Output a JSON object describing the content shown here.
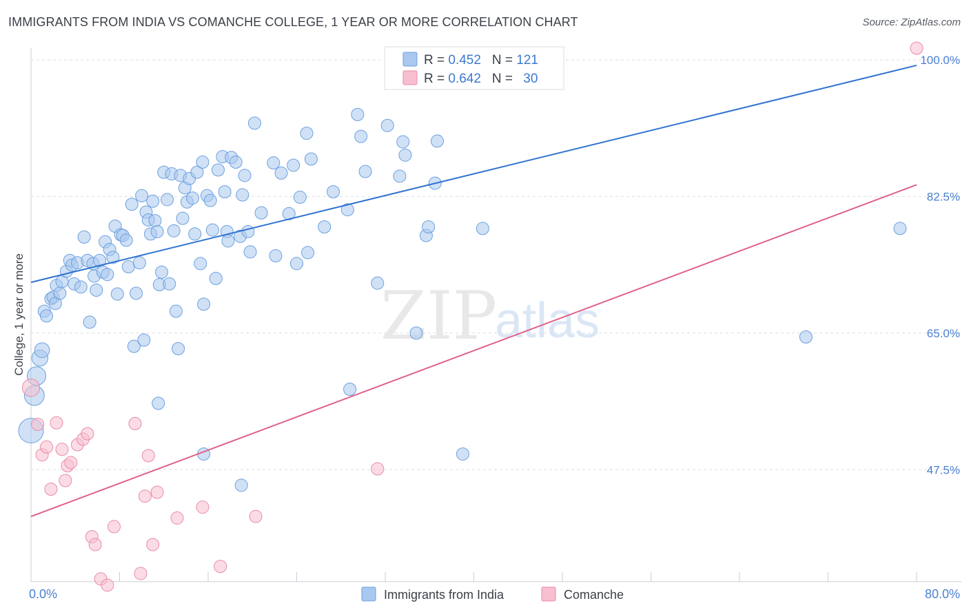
{
  "header": {
    "title": "IMMIGRANTS FROM INDIA VS COMANCHE COLLEGE, 1 YEAR OR MORE CORRELATION CHART",
    "source": "Source: ZipAtlas.com"
  },
  "watermark": {
    "zip": "ZIP",
    "atlas": "atlas"
  },
  "colors": {
    "blue_fill": "#a9c8ef",
    "blue_stroke": "#6c9fe0",
    "blue_line": "#2f72d0",
    "pink_fill": "#f7bfd0",
    "pink_stroke": "#e98aa8",
    "pink_line": "#e0608a",
    "tick_text": "#4a7fd0",
    "grid": "#d9dde3"
  },
  "legend": {
    "rows": [
      {
        "r_label": "R = ",
        "r_value": "0.452",
        "n_label": "N = ",
        "n_value": "121"
      },
      {
        "r_label": "R = ",
        "r_value": "0.642",
        "n_label": "N = ",
        "n_value": "30"
      }
    ]
  },
  "bottom_legend": [
    {
      "label": "Immigrants from India"
    },
    {
      "label": "Comanche"
    }
  ],
  "chart_data": {
    "type": "scatter",
    "title": "IMMIGRANTS FROM INDIA VS COMANCHE COLLEGE, 1 YEAR OR MORE CORRELATION CHART",
    "xlabel": "",
    "ylabel": "College, 1 year or more",
    "xlim": [
      0,
      80
    ],
    "ylim": [
      33.5,
      101.5
    ],
    "x_tick_labels": [
      "0.0%",
      "80.0%"
    ],
    "y_ticks": [
      47.5,
      65.0,
      82.5,
      100.0
    ],
    "y_tick_labels": [
      "47.5%",
      "65.0%",
      "82.5%",
      "100.0%"
    ],
    "grid": true,
    "series": [
      {
        "name": "Immigrants from India",
        "color": "#a9c8ef",
        "trend": {
          "x": [
            0,
            80
          ],
          "y": [
            71.5,
            99.3
          ]
        },
        "points": [
          [
            0.0,
            52.5,
            2.0
          ],
          [
            0.3,
            57.0,
            1.6
          ],
          [
            0.5,
            59.5,
            1.5
          ],
          [
            0.8,
            61.8,
            1.3
          ],
          [
            1.0,
            62.8,
            1.2
          ],
          [
            1.2,
            67.8,
            1.0
          ],
          [
            1.4,
            67.2,
            1.0
          ],
          [
            1.8,
            69.4,
            1.0
          ],
          [
            2.0,
            69.6,
            1.0
          ],
          [
            2.2,
            68.8,
            1.0
          ],
          [
            2.3,
            71.1,
            1.0
          ],
          [
            2.6,
            70.1,
            1.0
          ],
          [
            2.8,
            71.6,
            1.0
          ],
          [
            3.2,
            72.9,
            1.0
          ],
          [
            3.5,
            74.3,
            1.0
          ],
          [
            3.7,
            73.7,
            1.0
          ],
          [
            3.9,
            71.3,
            1.0
          ],
          [
            4.2,
            74.0,
            1.0
          ],
          [
            4.5,
            70.9,
            1.0
          ],
          [
            4.8,
            77.3,
            1.0
          ],
          [
            5.1,
            74.3,
            1.0
          ],
          [
            5.3,
            66.4,
            1.0
          ],
          [
            5.6,
            73.9,
            1.0
          ],
          [
            5.7,
            72.3,
            1.0
          ],
          [
            5.9,
            70.5,
            1.0
          ],
          [
            6.2,
            74.3,
            1.0
          ],
          [
            6.5,
            72.8,
            1.0
          ],
          [
            6.7,
            76.7,
            1.0
          ],
          [
            6.9,
            72.5,
            1.0
          ],
          [
            7.1,
            75.7,
            1.0
          ],
          [
            7.4,
            74.7,
            1.0
          ],
          [
            7.6,
            78.7,
            1.0
          ],
          [
            7.8,
            70.0,
            1.0
          ],
          [
            8.1,
            77.6,
            1.0
          ],
          [
            8.3,
            77.5,
            1.0
          ],
          [
            8.6,
            76.9,
            1.0
          ],
          [
            8.8,
            73.5,
            1.0
          ],
          [
            9.1,
            81.5,
            1.0
          ],
          [
            9.3,
            63.3,
            1.0
          ],
          [
            9.5,
            70.1,
            1.0
          ],
          [
            9.8,
            74.0,
            1.0
          ],
          [
            10.0,
            82.6,
            1.0
          ],
          [
            10.2,
            64.1,
            1.0
          ],
          [
            10.4,
            80.5,
            1.0
          ],
          [
            10.6,
            79.5,
            1.0
          ],
          [
            10.8,
            77.7,
            1.0
          ],
          [
            11.0,
            81.9,
            1.0
          ],
          [
            11.2,
            79.4,
            1.0
          ],
          [
            11.4,
            78.0,
            1.0
          ],
          [
            11.6,
            71.2,
            1.0
          ],
          [
            11.8,
            72.8,
            1.0
          ],
          [
            12.0,
            85.6,
            1.0
          ],
          [
            12.3,
            82.1,
            1.0
          ],
          [
            12.5,
            71.3,
            1.0
          ],
          [
            12.7,
            85.4,
            1.0
          ],
          [
            12.9,
            78.1,
            1.0
          ],
          [
            13.1,
            67.8,
            1.0
          ],
          [
            13.3,
            63.0,
            1.0
          ],
          [
            13.5,
            85.2,
            1.0
          ],
          [
            13.7,
            79.7,
            1.0
          ],
          [
            13.9,
            83.6,
            1.0
          ],
          [
            14.1,
            81.8,
            1.0
          ],
          [
            14.3,
            84.8,
            1.0
          ],
          [
            14.6,
            82.3,
            1.0
          ],
          [
            14.8,
            77.7,
            1.0
          ],
          [
            15.0,
            85.6,
            1.0
          ],
          [
            15.3,
            73.9,
            1.0
          ],
          [
            15.5,
            86.9,
            1.0
          ],
          [
            15.6,
            68.7,
            1.0
          ],
          [
            15.9,
            82.6,
            1.0
          ],
          [
            16.2,
            82.0,
            1.0
          ],
          [
            16.4,
            78.2,
            1.0
          ],
          [
            16.7,
            72.0,
            1.0
          ],
          [
            16.9,
            85.9,
            1.0
          ],
          [
            17.3,
            87.6,
            1.0
          ],
          [
            17.5,
            83.1,
            1.0
          ],
          [
            17.7,
            78.0,
            1.0
          ],
          [
            17.8,
            76.8,
            1.0
          ],
          [
            18.1,
            87.5,
            1.0
          ],
          [
            18.5,
            86.9,
            1.0
          ],
          [
            18.9,
            77.4,
            1.0
          ],
          [
            19.1,
            82.7,
            1.0
          ],
          [
            19.3,
            85.2,
            1.0
          ],
          [
            19.6,
            78.0,
            1.0
          ],
          [
            19.8,
            75.4,
            1.0
          ],
          [
            20.2,
            91.9,
            1.0
          ],
          [
            20.8,
            80.4,
            1.0
          ],
          [
            21.9,
            86.8,
            1.0
          ],
          [
            22.1,
            74.9,
            1.0
          ],
          [
            22.6,
            85.5,
            1.0
          ],
          [
            23.3,
            80.3,
            1.0
          ],
          [
            23.7,
            86.5,
            1.0
          ],
          [
            24.0,
            73.9,
            1.0
          ],
          [
            24.3,
            82.4,
            1.0
          ],
          [
            24.9,
            90.6,
            1.0
          ],
          [
            25.0,
            75.3,
            1.0
          ],
          [
            25.3,
            87.3,
            1.0
          ],
          [
            26.5,
            78.6,
            1.0
          ],
          [
            27.3,
            83.1,
            1.0
          ],
          [
            28.6,
            80.8,
            1.0
          ],
          [
            28.8,
            57.8,
            1.0
          ],
          [
            29.5,
            93.0,
            1.0
          ],
          [
            29.8,
            90.2,
            1.0
          ],
          [
            30.2,
            85.7,
            1.0
          ],
          [
            31.3,
            71.4,
            1.0
          ],
          [
            32.2,
            91.6,
            1.0
          ],
          [
            33.3,
            85.1,
            1.0
          ],
          [
            33.6,
            89.5,
            1.0
          ],
          [
            33.8,
            87.8,
            1.0
          ],
          [
            34.8,
            65.0,
            1.0
          ],
          [
            35.7,
            77.5,
            1.0
          ],
          [
            35.9,
            78.6,
            1.0
          ],
          [
            36.5,
            84.2,
            1.0
          ],
          [
            36.7,
            89.6,
            1.0
          ],
          [
            40.8,
            78.4,
            1.0
          ],
          [
            19.0,
            45.5,
            1.0
          ],
          [
            39.0,
            49.5,
            1.0
          ],
          [
            15.6,
            49.5,
            1.0
          ],
          [
            11.5,
            56.0,
            1.0
          ],
          [
            70.0,
            64.5,
            1.0
          ],
          [
            78.5,
            78.4,
            1.0
          ]
        ]
      },
      {
        "name": "Comanche",
        "color": "#f7bfd0",
        "trend": {
          "x": [
            0,
            80
          ],
          "y": [
            41.5,
            84.0
          ]
        },
        "points": [
          [
            0.0,
            58.0,
            1.4
          ],
          [
            0.6,
            53.3,
            1.0
          ],
          [
            1.0,
            49.4,
            1.0
          ],
          [
            1.4,
            50.4,
            1.0
          ],
          [
            1.8,
            45.0,
            1.0
          ],
          [
            2.3,
            53.5,
            1.0
          ],
          [
            2.8,
            50.1,
            1.0
          ],
          [
            3.1,
            46.1,
            1.0
          ],
          [
            3.3,
            48.0,
            1.0
          ],
          [
            3.6,
            48.4,
            1.0
          ],
          [
            4.2,
            50.7,
            1.0
          ],
          [
            4.7,
            51.4,
            1.0
          ],
          [
            5.1,
            52.1,
            1.0
          ],
          [
            5.5,
            38.9,
            1.0
          ],
          [
            5.8,
            37.9,
            1.0
          ],
          [
            6.3,
            33.5,
            1.0
          ],
          [
            6.9,
            32.7,
            1.0
          ],
          [
            7.5,
            40.2,
            1.0
          ],
          [
            9.4,
            53.4,
            1.0
          ],
          [
            9.9,
            34.2,
            1.0
          ],
          [
            10.3,
            44.1,
            1.0
          ],
          [
            10.6,
            49.3,
            1.0
          ],
          [
            11.0,
            37.9,
            1.0
          ],
          [
            11.4,
            44.6,
            1.0
          ],
          [
            13.2,
            41.3,
            1.0
          ],
          [
            15.5,
            42.7,
            1.0
          ],
          [
            17.1,
            35.1,
            1.0
          ],
          [
            20.3,
            41.5,
            1.0
          ],
          [
            31.3,
            47.6,
            1.0
          ],
          [
            80.0,
            101.5,
            1.0
          ]
        ]
      }
    ]
  }
}
